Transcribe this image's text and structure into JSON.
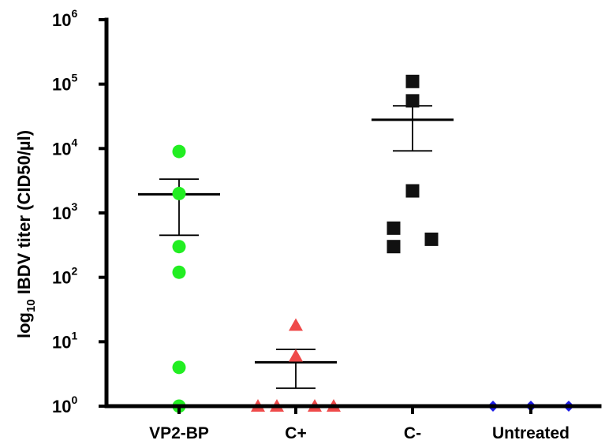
{
  "chart_data": {
    "type": "scatter",
    "title": "",
    "xlabel": "",
    "ylabel": {
      "prefix": "log",
      "subscript": "10",
      "rest": " IBDV titer (CID50/µl)"
    },
    "y_scale": "log",
    "ylim": [
      1,
      1000000
    ],
    "y_ticks": [
      {
        "base": "10",
        "exp": "0"
      },
      {
        "base": "10",
        "exp": "1"
      },
      {
        "base": "10",
        "exp": "2"
      },
      {
        "base": "10",
        "exp": "3"
      },
      {
        "base": "10",
        "exp": "4"
      },
      {
        "base": "10",
        "exp": "5"
      },
      {
        "base": "10",
        "exp": "6"
      }
    ],
    "categories": [
      "VP2-BP",
      "C+",
      "C-",
      "Untreated"
    ],
    "series": [
      {
        "category": "VP2-BP",
        "marker": "circle",
        "color": "#22ee22",
        "points": [
          {
            "x": 0,
            "y": 9000
          },
          {
            "x": 0,
            "y": 2000
          },
          {
            "x": 0,
            "y": 300
          },
          {
            "x": 0,
            "y": 120
          },
          {
            "x": 0,
            "y": 4
          },
          {
            "x": 0,
            "y": 1
          }
        ],
        "mean": 1950,
        "sem_low": 450,
        "sem_high": 3350
      },
      {
        "category": "C+",
        "marker": "triangle",
        "color": "#ef4a4a",
        "points": [
          {
            "x": -0.2,
            "y": 1
          },
          {
            "x": -0.1,
            "y": 1
          },
          {
            "x": 0,
            "y": 18
          },
          {
            "x": 0,
            "y": 6
          },
          {
            "x": 0.1,
            "y": 1
          },
          {
            "x": 0.2,
            "y": 1
          }
        ],
        "mean": 4.8,
        "sem_low": 1.9,
        "sem_high": 7.6
      },
      {
        "category": "C-",
        "marker": "square",
        "color": "#111111",
        "points": [
          {
            "x": 0,
            "y": 110000
          },
          {
            "x": 0,
            "y": 55000
          },
          {
            "x": 0,
            "y": 2200
          },
          {
            "x": -0.1,
            "y": 580
          },
          {
            "x": 0.1,
            "y": 390
          },
          {
            "x": -0.1,
            "y": 300
          }
        ],
        "mean": 28000,
        "sem_low": 9200,
        "sem_high": 46000
      },
      {
        "category": "Untreated",
        "marker": "diamond",
        "color": "#1a1ae6",
        "points": [
          {
            "x": -0.2,
            "y": 1
          },
          {
            "x": 0,
            "y": 1
          },
          {
            "x": 0.2,
            "y": 1
          }
        ]
      }
    ],
    "grid": false,
    "legend": "none"
  }
}
